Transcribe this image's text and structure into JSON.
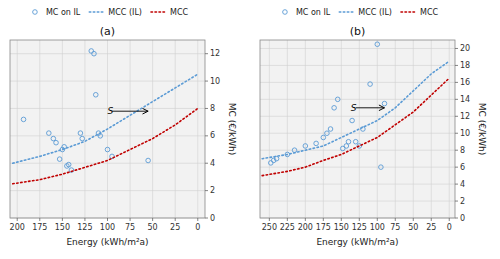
{
  "chart_data": [
    {
      "type": "scatter",
      "title": "(a)",
      "x_label": "Energy (kWh/m²a)",
      "y_label": "MC (€/kWh)",
      "xlim": [
        208,
        -8
      ],
      "xticks": [
        200,
        175,
        150,
        125,
        100,
        75,
        50,
        25,
        0
      ],
      "ylim": [
        0,
        13
      ],
      "yticks": [
        0,
        2,
        4,
        6,
        8,
        10,
        12
      ],
      "grid": true,
      "legend": "top",
      "series": [
        {
          "name": "MC on IL",
          "type": "scatter",
          "marker": "circle",
          "color": "#5B9BD5",
          "x": [
            193,
            165,
            160,
            157,
            153,
            150,
            148,
            145,
            143,
            140,
            130,
            128,
            118,
            115,
            113,
            110,
            108,
            100,
            95,
            55
          ],
          "values": [
            7.2,
            6.2,
            5.8,
            5.5,
            4.3,
            5.0,
            5.2,
            3.8,
            3.9,
            3.5,
            6.2,
            5.8,
            12.2,
            12.0,
            9.0,
            6.2,
            6.0,
            5.0,
            4.5,
            4.2
          ]
        },
        {
          "name": "MCC (IL)",
          "type": "line",
          "line_style": "dotted",
          "color": "#5B9BD5",
          "x": [
            205,
            175,
            150,
            125,
            100,
            75,
            50,
            25,
            0
          ],
          "values": [
            4.0,
            4.5,
            5.0,
            5.6,
            6.5,
            7.5,
            8.5,
            9.5,
            10.5
          ]
        },
        {
          "name": "MCC",
          "type": "line",
          "line_style": "dotted",
          "color": "#C00000",
          "x": [
            205,
            175,
            150,
            125,
            100,
            75,
            50,
            25,
            0
          ],
          "values": [
            2.5,
            2.8,
            3.2,
            3.7,
            4.2,
            5.0,
            5.8,
            6.8,
            8.0
          ]
        }
      ],
      "annotations": [
        {
          "text": "S",
          "x": 100,
          "y": 7.8,
          "arrow": {
            "x_from": 95,
            "x_to": 55,
            "y": 7.8
          }
        }
      ]
    },
    {
      "type": "scatter",
      "title": "(b)",
      "x_label": "Energy (kWh/m²a)",
      "y_label": "MC (€/kWh)",
      "xlim": [
        263,
        -8
      ],
      "xticks": [
        250,
        225,
        200,
        175,
        150,
        125,
        100,
        75,
        50,
        25,
        0
      ],
      "ylim": [
        0,
        21
      ],
      "yticks": [
        0,
        2,
        4,
        6,
        8,
        10,
        12,
        14,
        16,
        18,
        20
      ],
      "grid": true,
      "legend": "top",
      "series": [
        {
          "name": "MC on IL",
          "type": "scatter",
          "marker": "circle",
          "color": "#5B9BD5",
          "x": [
            248,
            244,
            240,
            225,
            215,
            200,
            185,
            175,
            170,
            165,
            160,
            155,
            148,
            143,
            140,
            135,
            130,
            125,
            120,
            110,
            100,
            95,
            90
          ],
          "values": [
            6.5,
            6.8,
            7.0,
            7.5,
            8.0,
            8.5,
            8.8,
            9.5,
            10.0,
            10.5,
            13.0,
            14.0,
            8.2,
            8.5,
            9.0,
            11.5,
            9.0,
            8.5,
            10.5,
            15.8,
            20.5,
            6.0,
            13.5
          ]
        },
        {
          "name": "MCC (IL)",
          "type": "line",
          "line_style": "dotted",
          "color": "#5B9BD5",
          "x": [
            260,
            225,
            200,
            175,
            150,
            125,
            100,
            75,
            50,
            25,
            0
          ],
          "values": [
            7.0,
            7.5,
            8.0,
            8.5,
            9.5,
            10.5,
            11.5,
            13.0,
            15.0,
            17.0,
            18.5
          ]
        },
        {
          "name": "MCC",
          "type": "line",
          "line_style": "dotted",
          "color": "#C00000",
          "x": [
            260,
            225,
            200,
            175,
            150,
            125,
            100,
            75,
            50,
            25,
            0
          ],
          "values": [
            5.0,
            5.5,
            6.0,
            6.8,
            7.5,
            8.5,
            9.5,
            11.0,
            12.5,
            14.5,
            16.5
          ]
        }
      ],
      "annotations": [
        {
          "text": "S",
          "x": 137,
          "y": 13.0,
          "arrow": {
            "x_from": 130,
            "x_to": 90,
            "y": 13.0
          }
        }
      ]
    }
  ]
}
